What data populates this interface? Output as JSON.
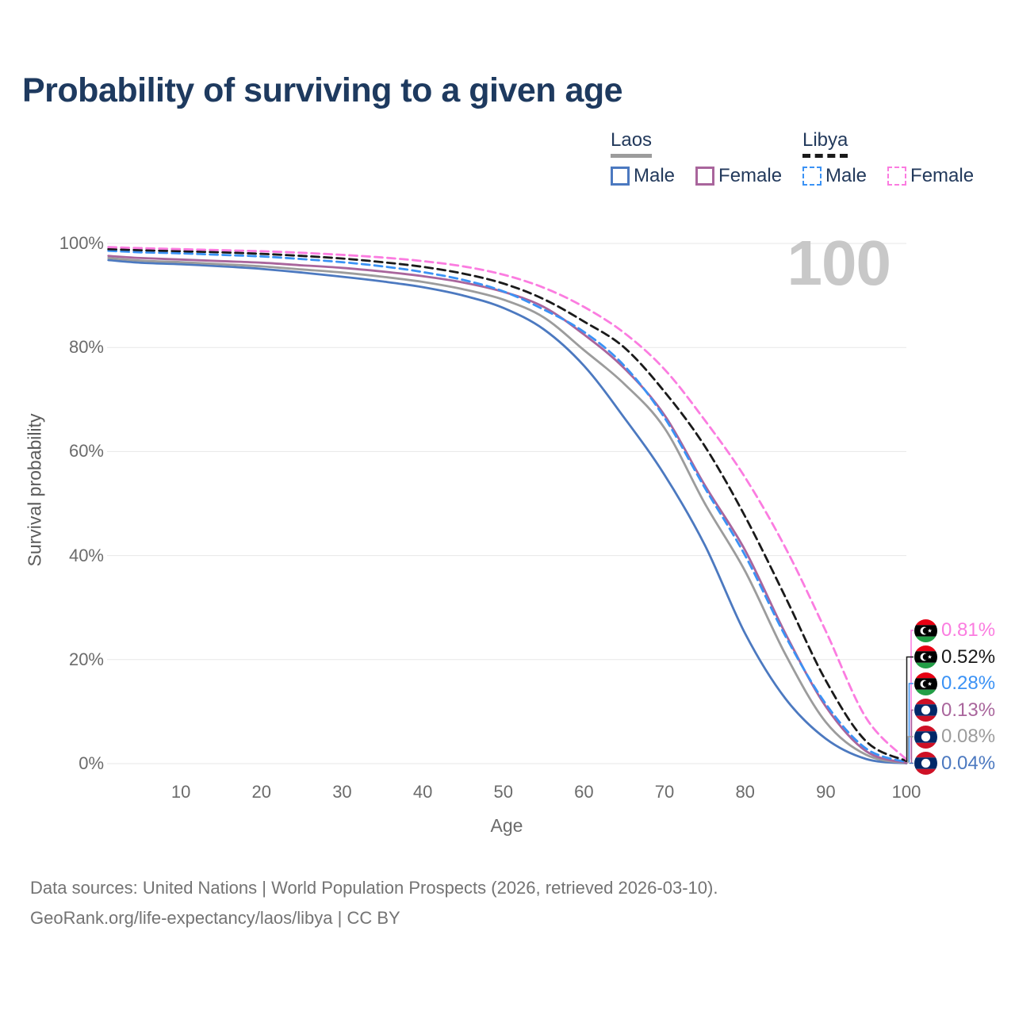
{
  "title": "Probability of surviving to a given age",
  "watermark_age": "100",
  "legend": {
    "groups": [
      {
        "label": "Laos",
        "line_style": "solid",
        "line_color": "#9c9c9c",
        "items": [
          {
            "label": "Male",
            "color": "#4c79c0",
            "dash": false
          },
          {
            "label": "Female",
            "color": "#a9659c",
            "dash": false
          }
        ]
      },
      {
        "label": "Libya",
        "line_style": "dashed",
        "line_color": "#1a1a1a",
        "items": [
          {
            "label": "Male",
            "color": "#3b92f5",
            "dash": true
          },
          {
            "label": "Female",
            "color": "#fb7ce0",
            "dash": true
          }
        ]
      }
    ]
  },
  "axes": {
    "y_title": "Survival probability",
    "x_title": "Age",
    "y_ticks": [
      "100%",
      "80%",
      "60%",
      "40%",
      "20%",
      "0%"
    ],
    "y_tick_values": [
      100,
      80,
      60,
      40,
      20,
      0
    ],
    "x_ticks": [
      "10",
      "20",
      "30",
      "40",
      "50",
      "60",
      "70",
      "80",
      "90",
      "100"
    ],
    "x_tick_values": [
      10,
      20,
      30,
      40,
      50,
      60,
      70,
      80,
      90,
      100
    ]
  },
  "chart_data": {
    "type": "line",
    "title": "Probability of surviving to a given age",
    "xlabel": "Age",
    "ylabel": "Survival probability",
    "xlim": [
      0,
      100
    ],
    "ylim": [
      0,
      100
    ],
    "grid": "horizontal",
    "x": [
      1,
      5,
      10,
      15,
      20,
      25,
      30,
      35,
      40,
      45,
      50,
      55,
      60,
      65,
      70,
      75,
      80,
      85,
      90,
      95,
      100
    ],
    "series": [
      {
        "name": "Laos Male",
        "country": "Laos",
        "sex": "Male",
        "color": "#4c79c0",
        "dash": false,
        "end_label": "0.04%",
        "values": [
          96.8,
          96.3,
          96.0,
          95.6,
          95.1,
          94.4,
          93.6,
          92.7,
          91.6,
          90.0,
          87.6,
          83.5,
          76.5,
          66.5,
          55.5,
          42.0,
          25.0,
          12.5,
          4.8,
          0.9,
          0.04
        ]
      },
      {
        "name": "Laos",
        "country": "Laos",
        "sex": "Both",
        "color": "#9c9c9c",
        "dash": false,
        "end_label": "0.08%",
        "values": [
          97.2,
          96.7,
          96.4,
          96.0,
          95.6,
          95.0,
          94.4,
          93.6,
          92.6,
          91.2,
          89.2,
          85.8,
          79.5,
          73.0,
          64.5,
          50.0,
          37.0,
          21.0,
          8.0,
          1.7,
          0.08
        ]
      },
      {
        "name": "Laos Female",
        "country": "Laos",
        "sex": "Female",
        "color": "#a9659c",
        "dash": false,
        "end_label": "0.13%",
        "values": [
          97.6,
          97.2,
          96.9,
          96.6,
          96.3,
          95.8,
          95.3,
          94.6,
          93.7,
          92.5,
          90.7,
          87.8,
          82.5,
          76.0,
          67.0,
          53.5,
          41.0,
          25.0,
          11.0,
          2.4,
          0.13
        ]
      },
      {
        "name": "Libya Male",
        "country": "Libya",
        "sex": "Male",
        "color": "#3b92f5",
        "dash": true,
        "end_label": "0.28%",
        "values": [
          98.6,
          98.3,
          98.1,
          97.8,
          97.5,
          97.0,
          96.4,
          95.6,
          94.5,
          93.0,
          90.8,
          87.3,
          83.0,
          76.5,
          66.5,
          53.0,
          40.0,
          24.5,
          11.5,
          2.9,
          0.28
        ]
      },
      {
        "name": "Libya",
        "country": "Libya",
        "sex": "Both",
        "color": "#1a1a1a",
        "dash": true,
        "end_label": "0.52%",
        "values": [
          98.9,
          98.7,
          98.5,
          98.3,
          98.0,
          97.6,
          97.1,
          96.4,
          95.5,
          94.2,
          92.3,
          89.3,
          85.0,
          80.0,
          71.5,
          61.0,
          47.5,
          32.0,
          16.0,
          4.3,
          0.52
        ]
      },
      {
        "name": "Libya Female",
        "country": "Libya",
        "sex": "Female",
        "color": "#fb7ce0",
        "dash": true,
        "end_label": "0.81%",
        "values": [
          99.3,
          99.1,
          98.9,
          98.7,
          98.5,
          98.2,
          97.8,
          97.3,
          96.6,
          95.6,
          94.0,
          91.5,
          87.8,
          82.8,
          75.8,
          66.0,
          55.0,
          41.5,
          25.5,
          8.8,
          0.81
        ]
      }
    ]
  },
  "endpoint_labels": [
    {
      "value": "0.81%",
      "country": "Libya",
      "flag": "libya",
      "color": "#fb7ce0"
    },
    {
      "value": "0.52%",
      "country": "Libya",
      "flag": "libya",
      "color": "#1a1a1a"
    },
    {
      "value": "0.28%",
      "country": "Libya",
      "flag": "libya",
      "color": "#3b92f5"
    },
    {
      "value": "0.13%",
      "country": "Laos",
      "flag": "laos",
      "color": "#a9659c"
    },
    {
      "value": "0.08%",
      "country": "Laos",
      "flag": "laos",
      "color": "#9c9c9c"
    },
    {
      "value": "0.04%",
      "country": "Laos",
      "flag": "laos",
      "color": "#4c79c0"
    }
  ],
  "flag_colors": {
    "libya_red": "#e70013",
    "libya_black": "#000000",
    "libya_green": "#239e46",
    "laos_red": "#ce1126",
    "laos_blue": "#002868"
  },
  "footer": {
    "line1": "Data sources: United Nations | World Population Prospects (2026, retrieved 2026-03-10).",
    "line2": "GeoRank.org/life-expectancy/laos/libya | CC BY"
  }
}
